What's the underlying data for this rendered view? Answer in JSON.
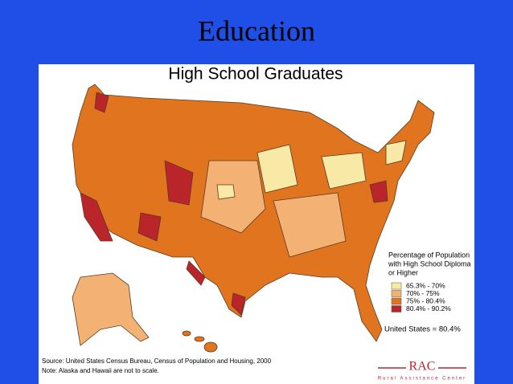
{
  "slide": {
    "title": "Education"
  },
  "map": {
    "title": "High School Graduates",
    "legend": {
      "title": [
        "Percentage of Population",
        "with High School Diploma",
        "or Higher"
      ],
      "items": [
        {
          "label": "65.3% - 70%",
          "color": "#f8eaa6"
        },
        {
          "label": "70% - 75%",
          "color": "#f3b274"
        },
        {
          "label": "75% - 80.4%",
          "color": "#e0741f"
        },
        {
          "label": "80.4% - 90.2%",
          "color": "#b9252b"
        }
      ]
    },
    "national": "United States = 80.4%",
    "source": "Source:  United States Census Bureau, Census of Population and Housing, 2000",
    "note": "Note:  Alaska and Hawaii are not to scale."
  },
  "logo": {
    "name": "RAC",
    "tagline": "Rural Assistance Center"
  }
}
